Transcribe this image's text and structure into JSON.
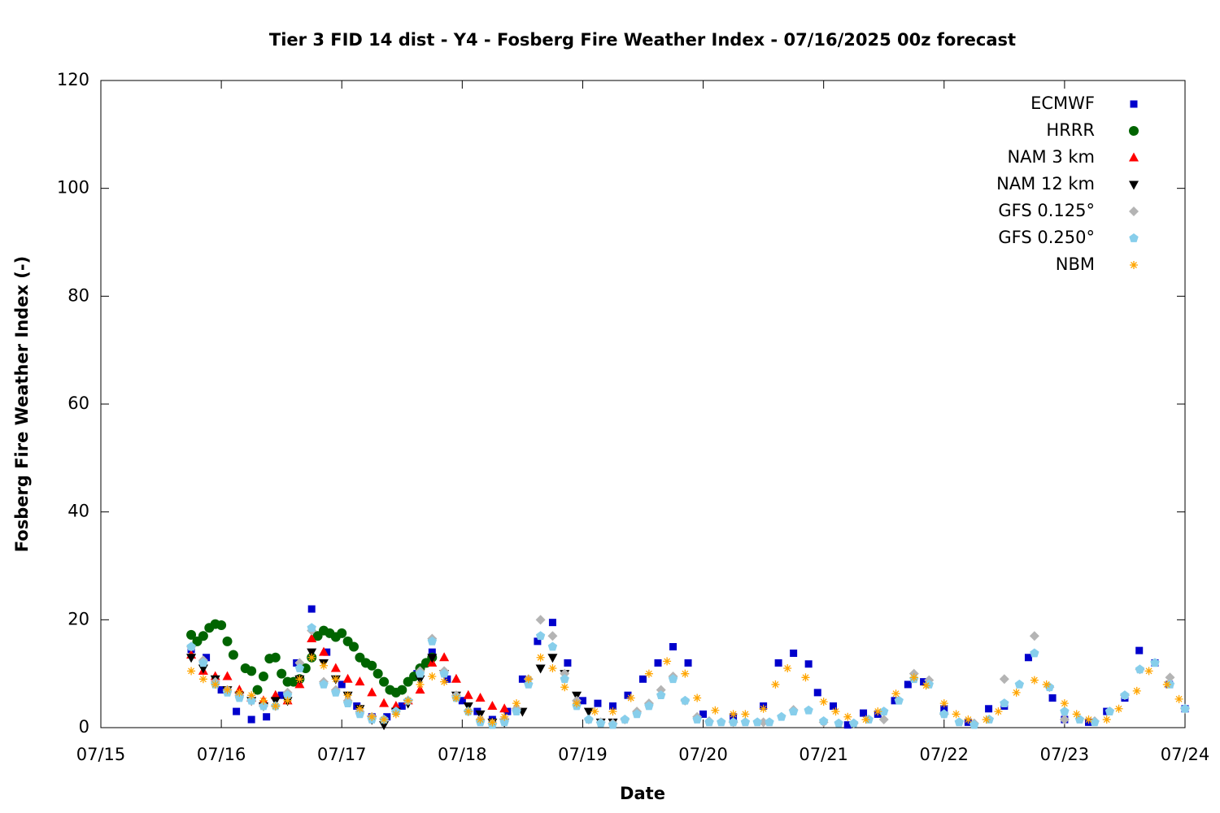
{
  "chart_data": {
    "type": "scatter",
    "title": "Tier 3 FID 14 dist - Y4 - Fosberg Fire Weather Index - 07/16/2025 00z forecast",
    "xlabel": "Date",
    "ylabel": "Fosberg Fire Weather Index (-)",
    "xlim": [
      0,
      9
    ],
    "ylim": [
      0,
      120
    ],
    "xticks": [
      {
        "value": 0,
        "label": "07/15"
      },
      {
        "value": 1,
        "label": "07/16"
      },
      {
        "value": 2,
        "label": "07/17"
      },
      {
        "value": 3,
        "label": "07/18"
      },
      {
        "value": 4,
        "label": "07/19"
      },
      {
        "value": 5,
        "label": "07/20"
      },
      {
        "value": 6,
        "label": "07/21"
      },
      {
        "value": 7,
        "label": "07/22"
      },
      {
        "value": 8,
        "label": "07/23"
      },
      {
        "value": 9,
        "label": "07/24"
      }
    ],
    "yticks": [
      0,
      20,
      40,
      60,
      80,
      100,
      120
    ],
    "legend": "top-right",
    "series": [
      {
        "name": "ECMWF",
        "color": "#0000cc",
        "marker": "square",
        "x": [
          0.75,
          0.875,
          1.0,
          1.125,
          1.25,
          1.375,
          1.5,
          1.625,
          1.75,
          1.875,
          2.0,
          2.125,
          2.25,
          2.375,
          2.5,
          2.625,
          2.75,
          2.875,
          3.0,
          3.125,
          3.25,
          3.375,
          3.5,
          3.625,
          3.75,
          3.875,
          4.0,
          4.125,
          4.25,
          4.375,
          4.5,
          4.625,
          4.75,
          4.875,
          5.0,
          5.25,
          5.5,
          5.625,
          5.75,
          5.875,
          5.95,
          6.08,
          6.2,
          6.33,
          6.45,
          6.59,
          6.7,
          6.83,
          7.0,
          7.2,
          7.37,
          7.5,
          7.7,
          7.9,
          8.0,
          8.2,
          8.35,
          8.5,
          8.62,
          8.75,
          8.87,
          9.0
        ],
        "values": [
          14.5,
          13,
          7,
          3,
          1.5,
          2,
          6,
          12,
          22,
          14,
          8,
          4,
          2,
          2,
          4,
          10,
          14,
          9,
          5,
          3,
          1.5,
          3,
          9,
          16,
          19.5,
          12,
          5,
          4.5,
          4,
          6,
          9,
          12,
          15,
          12,
          2.5,
          2,
          4,
          12,
          13.8,
          11.8,
          6.5,
          4,
          0.5,
          2.7,
          2.5,
          5,
          8,
          8.5,
          3.5,
          1,
          3.5,
          4,
          13,
          5.5,
          1.5,
          1,
          3,
          5.5,
          14.3,
          12,
          8,
          3.5
        ]
      },
      {
        "name": "HRRR",
        "color": "#006400",
        "marker": "circle",
        "x": [
          0.75,
          0.8,
          0.85,
          0.9,
          0.95,
          1.0,
          1.05,
          1.1,
          1.2,
          1.25,
          1.3,
          1.35,
          1.4,
          1.45,
          1.5,
          1.55,
          1.6,
          1.65,
          1.7,
          1.75,
          1.8,
          1.85,
          1.9,
          1.95,
          2.0,
          2.05,
          2.1,
          2.15,
          2.2,
          2.25,
          2.3,
          2.35,
          2.4,
          2.45,
          2.5,
          2.55,
          2.6,
          2.65,
          2.7,
          2.75
        ],
        "values": [
          17.2,
          16,
          17,
          18.5,
          19.2,
          19,
          16,
          13.5,
          11,
          10.5,
          7,
          9.5,
          12.8,
          13,
          10,
          8.5,
          8.5,
          9,
          11,
          13,
          17,
          18,
          17.5,
          16.8,
          17.5,
          16,
          15,
          13,
          12,
          11.5,
          10,
          8.5,
          7,
          6.5,
          7,
          8.5,
          9.5,
          11,
          12,
          13
        ]
      },
      {
        "name": "NAM 3 km",
        "color": "#ff0000",
        "marker": "triangle-up",
        "x": [
          0.75,
          0.85,
          0.95,
          1.05,
          1.15,
          1.25,
          1.35,
          1.45,
          1.55,
          1.65,
          1.75,
          1.85,
          1.95,
          2.05,
          2.15,
          2.25,
          2.35,
          2.45,
          2.55,
          2.65,
          2.75,
          2.85,
          2.95,
          3.05,
          3.15,
          3.25,
          3.35
        ],
        "values": [
          13.5,
          10.5,
          9.5,
          9.5,
          7,
          5.5,
          5,
          6,
          5,
          8,
          16.5,
          14,
          11,
          9,
          8.5,
          6.5,
          4.5,
          4,
          5,
          7,
          12,
          13,
          9,
          6,
          5.5,
          4,
          3.5
        ]
      },
      {
        "name": "NAM 12 km",
        "color": "#000000",
        "marker": "triangle-down",
        "x": [
          0.75,
          0.85,
          0.95,
          1.05,
          1.15,
          1.25,
          1.35,
          1.45,
          1.55,
          1.65,
          1.75,
          1.85,
          1.95,
          2.05,
          2.15,
          2.25,
          2.35,
          2.45,
          2.55,
          2.65,
          2.75,
          2.85,
          2.95,
          3.05,
          3.15,
          3.25,
          3.35,
          3.5,
          3.65,
          3.75,
          3.85,
          3.95,
          4.05,
          4.15,
          4.25
        ],
        "values": [
          13,
          11,
          9,
          7,
          6,
          5,
          4,
          5,
          5,
          9,
          14,
          12,
          9,
          6,
          3.5,
          1.5,
          0.5,
          3,
          4.5,
          9,
          13,
          10,
          6,
          4,
          2.5,
          1,
          1,
          3,
          11,
          13,
          10,
          6,
          3,
          1,
          1
        ]
      },
      {
        "name": "GFS 0.125°",
        "color": "#b4b4b4",
        "marker": "diamond",
        "x": [
          0.75,
          0.85,
          0.95,
          1.05,
          1.15,
          1.25,
          1.35,
          1.45,
          1.55,
          1.65,
          1.75,
          1.85,
          1.95,
          2.05,
          2.15,
          2.25,
          2.35,
          2.45,
          2.55,
          2.65,
          2.75,
          2.85,
          2.95,
          3.05,
          3.15,
          3.25,
          3.35,
          3.45,
          3.55,
          3.65,
          3.75,
          3.85,
          3.95,
          4.05,
          4.15,
          4.25,
          4.35,
          4.45,
          4.55,
          4.65,
          4.75,
          4.85,
          4.95,
          5.05,
          5.25,
          5.5,
          5.75,
          6.0,
          6.25,
          6.5,
          6.75,
          6.875,
          7.0,
          7.25,
          7.5,
          7.75,
          7.875,
          8.0,
          8.25,
          8.5,
          8.625,
          8.875,
          9.0
        ],
        "values": [
          15,
          12.5,
          8.5,
          7,
          6,
          5,
          4,
          4,
          6.5,
          12,
          18,
          8.5,
          7,
          5,
          3,
          2,
          1.5,
          3,
          5,
          10.5,
          16.5,
          10.5,
          6,
          3,
          1.5,
          0.8,
          1.5,
          3.5,
          9,
          20,
          17,
          10,
          5,
          1.5,
          1,
          0.8,
          1.5,
          3,
          4.5,
          7,
          9.5,
          5,
          2,
          1.2,
          1,
          1,
          3.3,
          1,
          0.8,
          1.5,
          10,
          8.8,
          2.5,
          0.8,
          9,
          17,
          7.5,
          1.5,
          1.2,
          6,
          10.8,
          9.3,
          3.5
        ]
      },
      {
        "name": "GFS 0.250°",
        "color": "#87ceeb",
        "marker": "pentagon",
        "x": [
          0.75,
          0.85,
          0.95,
          1.05,
          1.15,
          1.25,
          1.35,
          1.45,
          1.55,
          1.65,
          1.75,
          1.85,
          1.95,
          2.05,
          2.15,
          2.25,
          2.35,
          2.45,
          2.55,
          2.65,
          2.75,
          2.85,
          2.95,
          3.05,
          3.15,
          3.25,
          3.35,
          3.45,
          3.55,
          3.65,
          3.75,
          3.85,
          3.95,
          4.05,
          4.15,
          4.25,
          4.35,
          4.45,
          4.55,
          4.65,
          4.75,
          4.85,
          4.95,
          5.05,
          5.15,
          5.25,
          5.35,
          5.45,
          5.55,
          5.65,
          5.75,
          5.875,
          6.0,
          6.125,
          6.25,
          6.375,
          6.5,
          6.625,
          6.75,
          6.875,
          7.0,
          7.125,
          7.25,
          7.375,
          7.5,
          7.625,
          7.75,
          7.875,
          8.0,
          8.125,
          8.25,
          8.375,
          8.5,
          8.625,
          8.75,
          8.875,
          9.0
        ],
        "values": [
          15,
          12,
          8,
          6.5,
          5.5,
          5,
          4,
          4,
          6,
          11,
          18.5,
          8,
          6.5,
          4.5,
          2.5,
          1.5,
          1.5,
          3,
          5,
          10,
          16,
          10,
          5.5,
          3,
          1,
          0.5,
          1,
          3,
          8,
          17,
          15,
          9,
          4,
          1.5,
          0.8,
          0.5,
          1.5,
          2.5,
          4,
          6,
          9,
          5,
          1.5,
          1,
          1,
          1,
          1,
          1,
          1,
          2,
          3,
          3.2,
          1.2,
          0.8,
          0.8,
          1.5,
          3,
          5,
          9,
          8,
          2.5,
          1,
          0.5,
          1.5,
          4.5,
          8,
          13.8,
          7.5,
          3,
          1.5,
          1,
          3,
          6,
          10.8,
          12,
          8,
          3.5
        ]
      },
      {
        "name": "NBM",
        "color": "#ffa500",
        "marker": "asterisk",
        "x": [
          0.75,
          0.85,
          0.95,
          1.05,
          1.15,
          1.25,
          1.35,
          1.45,
          1.55,
          1.65,
          1.75,
          1.85,
          1.95,
          2.05,
          2.15,
          2.25,
          2.35,
          2.45,
          2.55,
          2.65,
          2.75,
          2.85,
          2.95,
          3.05,
          3.15,
          3.25,
          3.35,
          3.45,
          3.55,
          3.65,
          3.75,
          3.85,
          3.95,
          4.1,
          4.25,
          4.4,
          4.55,
          4.7,
          4.85,
          4.95,
          5.1,
          5.25,
          5.35,
          5.5,
          5.6,
          5.7,
          5.85,
          6.0,
          6.1,
          6.2,
          6.35,
          6.45,
          6.6,
          6.75,
          6.85,
          7.0,
          7.1,
          7.2,
          7.35,
          7.45,
          7.6,
          7.75,
          7.85,
          8.0,
          8.1,
          8.2,
          8.35,
          8.45,
          8.6,
          8.7,
          8.85,
          8.95
        ],
        "values": [
          10.5,
          9,
          8,
          7,
          6.5,
          6,
          5,
          4,
          5,
          9,
          13,
          11.5,
          9,
          6,
          3.5,
          2,
          1.5,
          2.5,
          5,
          8,
          9.5,
          8.5,
          5.5,
          3,
          1.5,
          1,
          2,
          4.5,
          9,
          13,
          11,
          7.5,
          4.5,
          3,
          3,
          5.5,
          10,
          12.3,
          10,
          5.5,
          3.2,
          2.5,
          2.5,
          3.5,
          8,
          11,
          9.3,
          4.8,
          3,
          2,
          1.5,
          3,
          6.3,
          9.3,
          7.8,
          4.5,
          2.5,
          1.5,
          1.5,
          3,
          6.5,
          8.8,
          8,
          4.5,
          2.5,
          1.5,
          1.5,
          3.5,
          6.8,
          10.5,
          8,
          5.3
        ]
      }
    ]
  }
}
